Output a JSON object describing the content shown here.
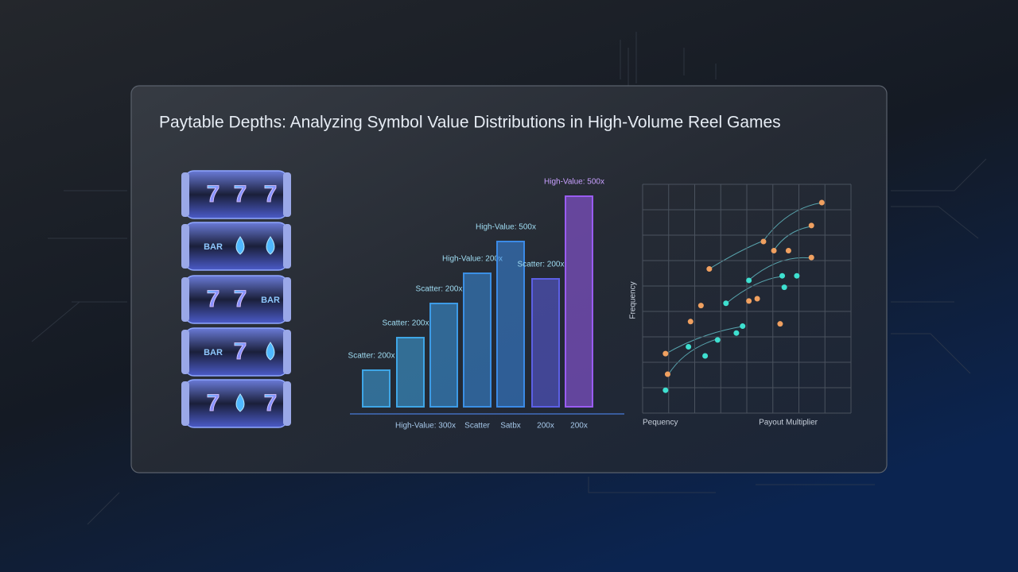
{
  "title": "Paytable Depths: Analyzing Symbol Value Distributions in High-Volume Reel Games",
  "reels": [
    [
      "7",
      "7",
      "7"
    ],
    [
      "BAR",
      null,
      null
    ],
    [
      "7",
      "7",
      "BAR"
    ],
    [
      "BAR",
      "7",
      null
    ],
    [
      "7",
      null,
      "7"
    ]
  ],
  "chart_data": [
    {
      "type": "bar",
      "categories": [
        null,
        "High-Value: 300x",
        null,
        "Scatter",
        "Satbx",
        "200x",
        "200x"
      ],
      "values": [
        46,
        87,
        130,
        168,
        208,
        161,
        265
      ],
      "annotations": [
        "Scatter: 200x",
        "Scatter: 200x",
        "Scatter: 200x",
        "High-Value: 200x",
        "High-Value: 500x",
        "Scatter: 200x",
        "High-Value: 500x"
      ],
      "colors": [
        "#3fa6e6",
        "#3fa6e6",
        "#3d9be6",
        "#3b8fe4",
        "#3b8ae6",
        "#5c5fe4",
        "#9a5cf2"
      ],
      "ylim": [
        0,
        300
      ]
    },
    {
      "type": "scatter",
      "y_label": "Frequency",
      "x_labels": [
        "Pequency",
        "Payout Multiplier"
      ],
      "xlim": [
        0,
        10
      ],
      "ylim": [
        0,
        10
      ],
      "grid": true,
      "series": [
        {
          "color": "#f0a060",
          "x": [
            8.6,
            8.1,
            5.8,
            6.3,
            7.0,
            8.1,
            3.2,
            2.8,
            5.1,
            5.5,
            2.3,
            6.6,
            1.1,
            1.2
          ],
          "values": [
            9.2,
            8.2,
            7.5,
            7.1,
            7.1,
            6.8,
            6.3,
            4.7,
            4.9,
            5.0,
            4.0,
            3.9,
            2.6,
            1.7
          ]
        },
        {
          "color": "#3ee0d0",
          "x": [
            5.1,
            6.7,
            7.4,
            6.8,
            4.0,
            4.8,
            4.5,
            3.6,
            2.2,
            3.0,
            1.1
          ],
          "values": [
            5.8,
            6.0,
            6.0,
            5.5,
            4.8,
            3.8,
            3.5,
            3.2,
            2.9,
            2.5,
            1.0
          ]
        }
      ]
    }
  ]
}
